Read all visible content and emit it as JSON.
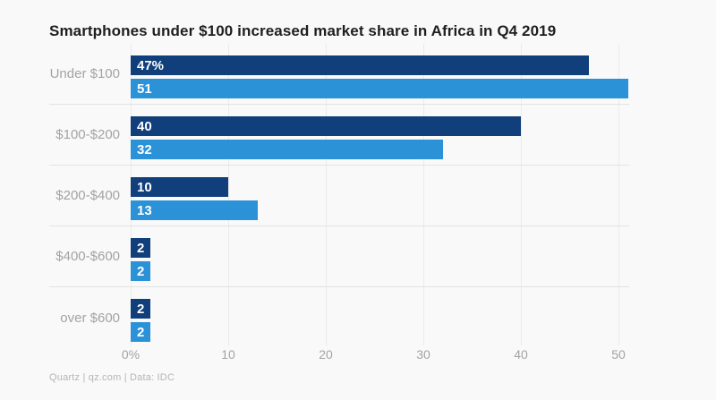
{
  "chart_data": {
    "type": "bar",
    "orientation": "horizontal",
    "title": "Smartphones under $100 increased market share in Africa in Q4 2019",
    "categories": [
      "Under $100",
      "$100-$200",
      "$200-$400",
      "$400-$600",
      "over $600"
    ],
    "series": [
      {
        "name": "dark-navy-bars",
        "color": "#113f7c",
        "values": [
          47,
          40,
          10,
          2,
          2
        ],
        "display_labels": [
          "47%",
          "40",
          "10",
          "2",
          "2"
        ]
      },
      {
        "name": "light-blue-bars",
        "color": "#2c92d8",
        "values": [
          51,
          32,
          13,
          2,
          2
        ],
        "display_labels": [
          "51",
          "32",
          "13",
          "2",
          "2"
        ]
      }
    ],
    "xlim": [
      0,
      51.1
    ],
    "x_ticks": [
      {
        "value": 0,
        "label": "0%"
      },
      {
        "value": 10,
        "label": "10"
      },
      {
        "value": 20,
        "label": "20"
      },
      {
        "value": 30,
        "label": "30"
      },
      {
        "value": 40,
        "label": "40"
      },
      {
        "value": 50,
        "label": "50"
      }
    ],
    "grid": true,
    "legend": "none",
    "source": "Quartz | qz.com | Data: IDC"
  },
  "colors": {
    "background": "#f9f9f9",
    "gridline": "#ebebeb",
    "row_separator": "#e3e3e3",
    "category_label": "#a3a3a3",
    "tick_label": "#a3a3a3",
    "title_text": "#1f1f1f",
    "bar_value_text": "#ffffff",
    "source_text": "#b5b5b5"
  }
}
